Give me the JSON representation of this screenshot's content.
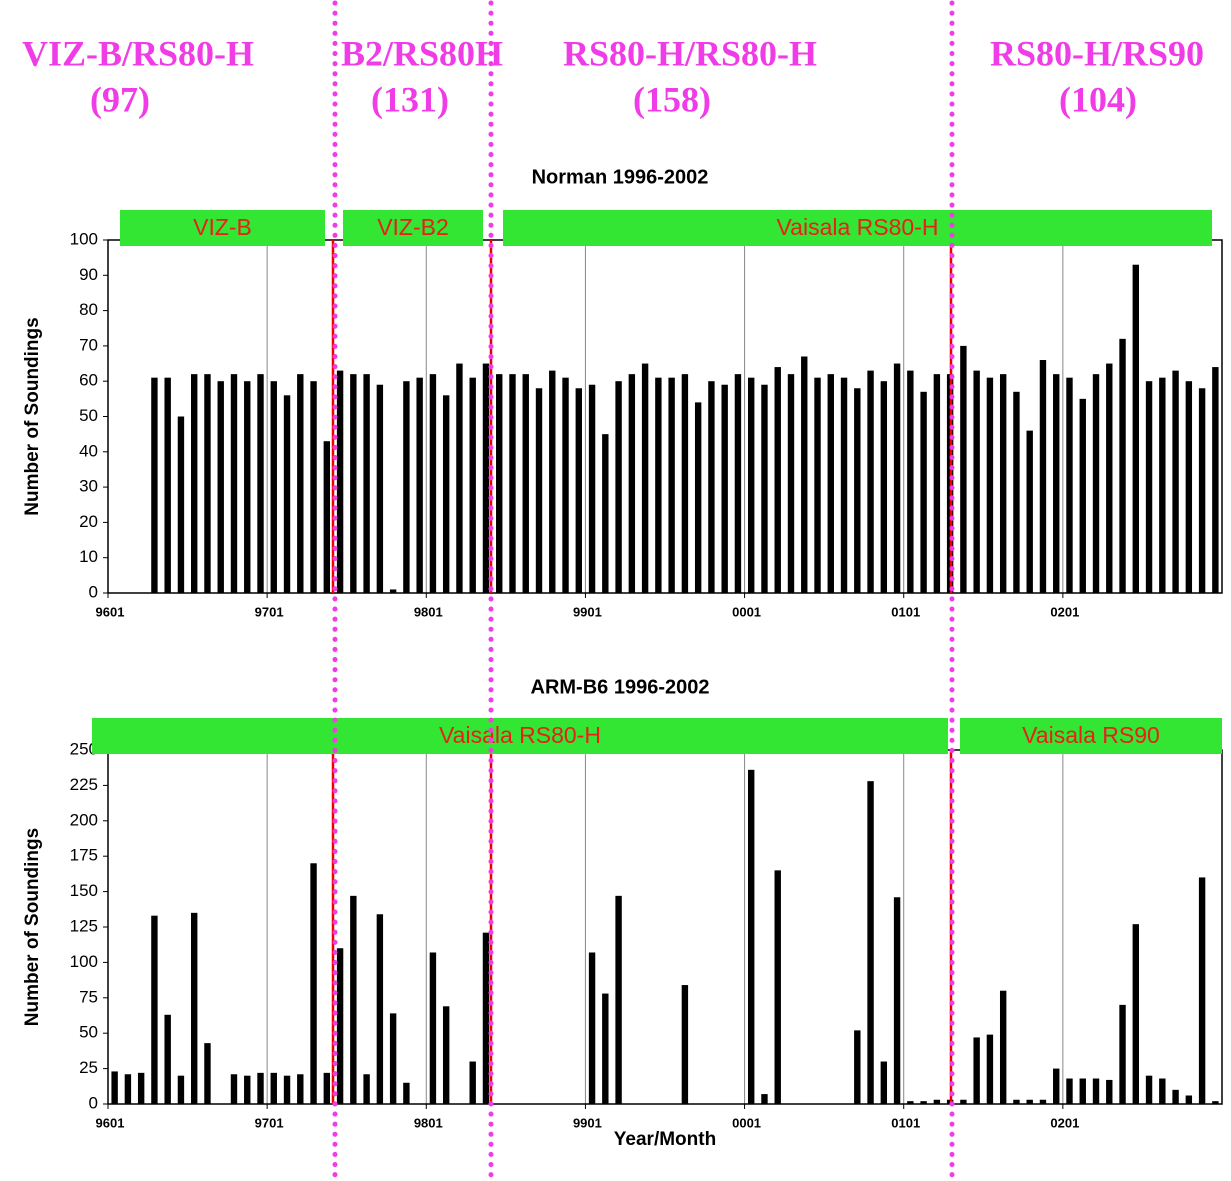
{
  "headers": [
    {
      "name": "VIZ-B/RS80-H",
      "count": "(97)"
    },
    {
      "name": "B2/RS80H",
      "count": "(131)"
    },
    {
      "name": "RS80-H/RS80-H",
      "count": "(158)"
    },
    {
      "name": "RS80-H/RS90",
      "count": "(104)"
    }
  ],
  "chart_data": [
    {
      "type": "bar",
      "title": "Norman 1996-2002",
      "y_label": "Number of Soundings",
      "bands": [
        "VIZ-B",
        "VIZ-B2",
        "Vaisala RS80-H"
      ],
      "categories": [
        "9601",
        null,
        null,
        null,
        null,
        null,
        null,
        null,
        null,
        null,
        null,
        null,
        "9701",
        null,
        null,
        null,
        null,
        null,
        null,
        null,
        null,
        null,
        null,
        null,
        "9801",
        null,
        null,
        null,
        null,
        null,
        null,
        null,
        null,
        null,
        null,
        null,
        "9901",
        null,
        null,
        null,
        null,
        null,
        null,
        null,
        null,
        null,
        null,
        null,
        "0001",
        null,
        null,
        null,
        null,
        null,
        null,
        null,
        null,
        null,
        null,
        null,
        "0101",
        null,
        null,
        null,
        null,
        null,
        null,
        null,
        null,
        null,
        null,
        null,
        "0201",
        null,
        null,
        null,
        null,
        null,
        null,
        null,
        null,
        null,
        null,
        null
      ],
      "values": [
        0,
        0,
        0,
        61,
        61,
        50,
        62,
        62,
        60,
        62,
        60,
        62,
        60,
        56,
        62,
        60,
        43,
        63,
        62,
        62,
        59,
        1,
        60,
        61,
        62,
        56,
        65,
        61,
        65,
        62,
        62,
        62,
        58,
        63,
        61,
        58,
        59,
        45,
        60,
        62,
        65,
        61,
        61,
        62,
        54,
        60,
        59,
        62,
        61,
        59,
        64,
        62,
        67,
        61,
        62,
        61,
        58,
        63,
        60,
        65,
        63,
        57,
        62,
        62,
        70,
        63,
        61,
        62,
        57,
        46,
        66,
        62,
        61,
        55,
        62,
        65,
        72,
        93,
        60,
        61,
        63,
        60,
        58,
        64
      ],
      "color": "#000000",
      "ylim": [
        0,
        100
      ],
      "yticks": [
        0,
        10,
        20,
        30,
        40,
        50,
        60,
        70,
        80,
        90,
        100
      ],
      "grid": true
    },
    {
      "type": "bar",
      "title": "ARM-B6 1996-2002",
      "y_label": "Number of Soundings",
      "x_label": "Year/Month",
      "bands": [
        "Vaisala RS80-H",
        "Vaisala RS90"
      ],
      "categories": [
        "9601",
        null,
        null,
        null,
        null,
        null,
        null,
        null,
        null,
        null,
        null,
        null,
        "9701",
        null,
        null,
        null,
        null,
        null,
        null,
        null,
        null,
        null,
        null,
        null,
        "9801",
        null,
        null,
        null,
        null,
        null,
        null,
        null,
        null,
        null,
        null,
        null,
        "9901",
        null,
        null,
        null,
        null,
        null,
        null,
        null,
        null,
        null,
        null,
        null,
        "0001",
        null,
        null,
        null,
        null,
        null,
        null,
        null,
        null,
        null,
        null,
        null,
        "0101",
        null,
        null,
        null,
        null,
        null,
        null,
        null,
        null,
        null,
        null,
        null,
        "0201",
        null,
        null,
        null,
        null,
        null,
        null,
        null,
        null,
        null,
        null,
        null
      ],
      "values": [
        23,
        21,
        22,
        133,
        63,
        20,
        135,
        43,
        0,
        21,
        20,
        22,
        22,
        20,
        21,
        170,
        22,
        110,
        147,
        21,
        134,
        64,
        15,
        0,
        107,
        69,
        0,
        30,
        121,
        0,
        0,
        0,
        0,
        0,
        0,
        0,
        107,
        78,
        147,
        0,
        0,
        0,
        0,
        84,
        0,
        0,
        0,
        0,
        236,
        7,
        165,
        0,
        0,
        0,
        0,
        0,
        52,
        228,
        30,
        146,
        2,
        2,
        3,
        3,
        3,
        47,
        49,
        80,
        3,
        3,
        3,
        25,
        18,
        18,
        18,
        17,
        70,
        127,
        20,
        18,
        10,
        6,
        160,
        2
      ],
      "color": "#000000",
      "ylim": [
        0,
        250
      ],
      "yticks": [
        0,
        25,
        50,
        75,
        100,
        125,
        150,
        175,
        200,
        225,
        250
      ],
      "grid": true
    }
  ]
}
